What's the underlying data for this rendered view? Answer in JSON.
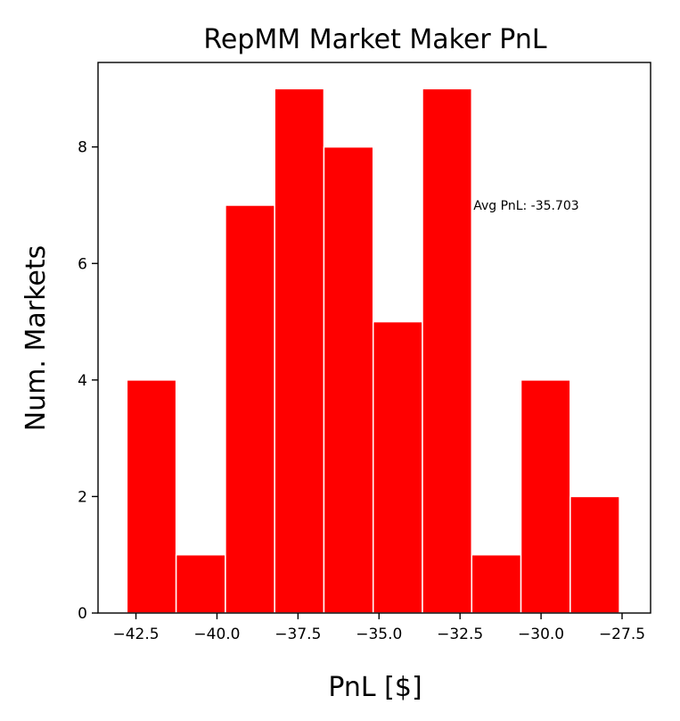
{
  "chart_data": {
    "type": "bar",
    "title": "RepMM Market Maker PnL",
    "xlabel": "PnL [$]",
    "ylabel": "Num. Markets",
    "bin_edges": [
      -42.78,
      -41.26,
      -39.74,
      -38.22,
      -36.7,
      -35.18,
      -33.66,
      -32.14,
      -30.62,
      -29.1,
      -27.58
    ],
    "values": [
      4,
      1,
      7,
      9,
      8,
      5,
      9,
      1,
      4,
      2
    ],
    "xlim": [
      -43.67,
      -26.62
    ],
    "ylim": [
      0,
      9.45
    ],
    "xticks": [
      -42.5,
      -40.0,
      -37.5,
      -35.0,
      -32.5,
      -30.0,
      -27.5
    ],
    "xtick_labels": [
      "−42.5",
      "−40.0",
      "−37.5",
      "−35.0",
      "−32.5",
      "−30.0",
      "−27.5"
    ],
    "yticks": [
      0,
      2,
      4,
      6,
      8
    ],
    "ytick_labels": [
      "0",
      "2",
      "4",
      "6",
      "8"
    ],
    "bar_color": "#ff0000",
    "bar_edge_color": "#ffffff",
    "grid": false,
    "legend": "none",
    "annotation": {
      "text": "Avg PnL: -35.703",
      "x": -32.14,
      "y": 7
    }
  }
}
